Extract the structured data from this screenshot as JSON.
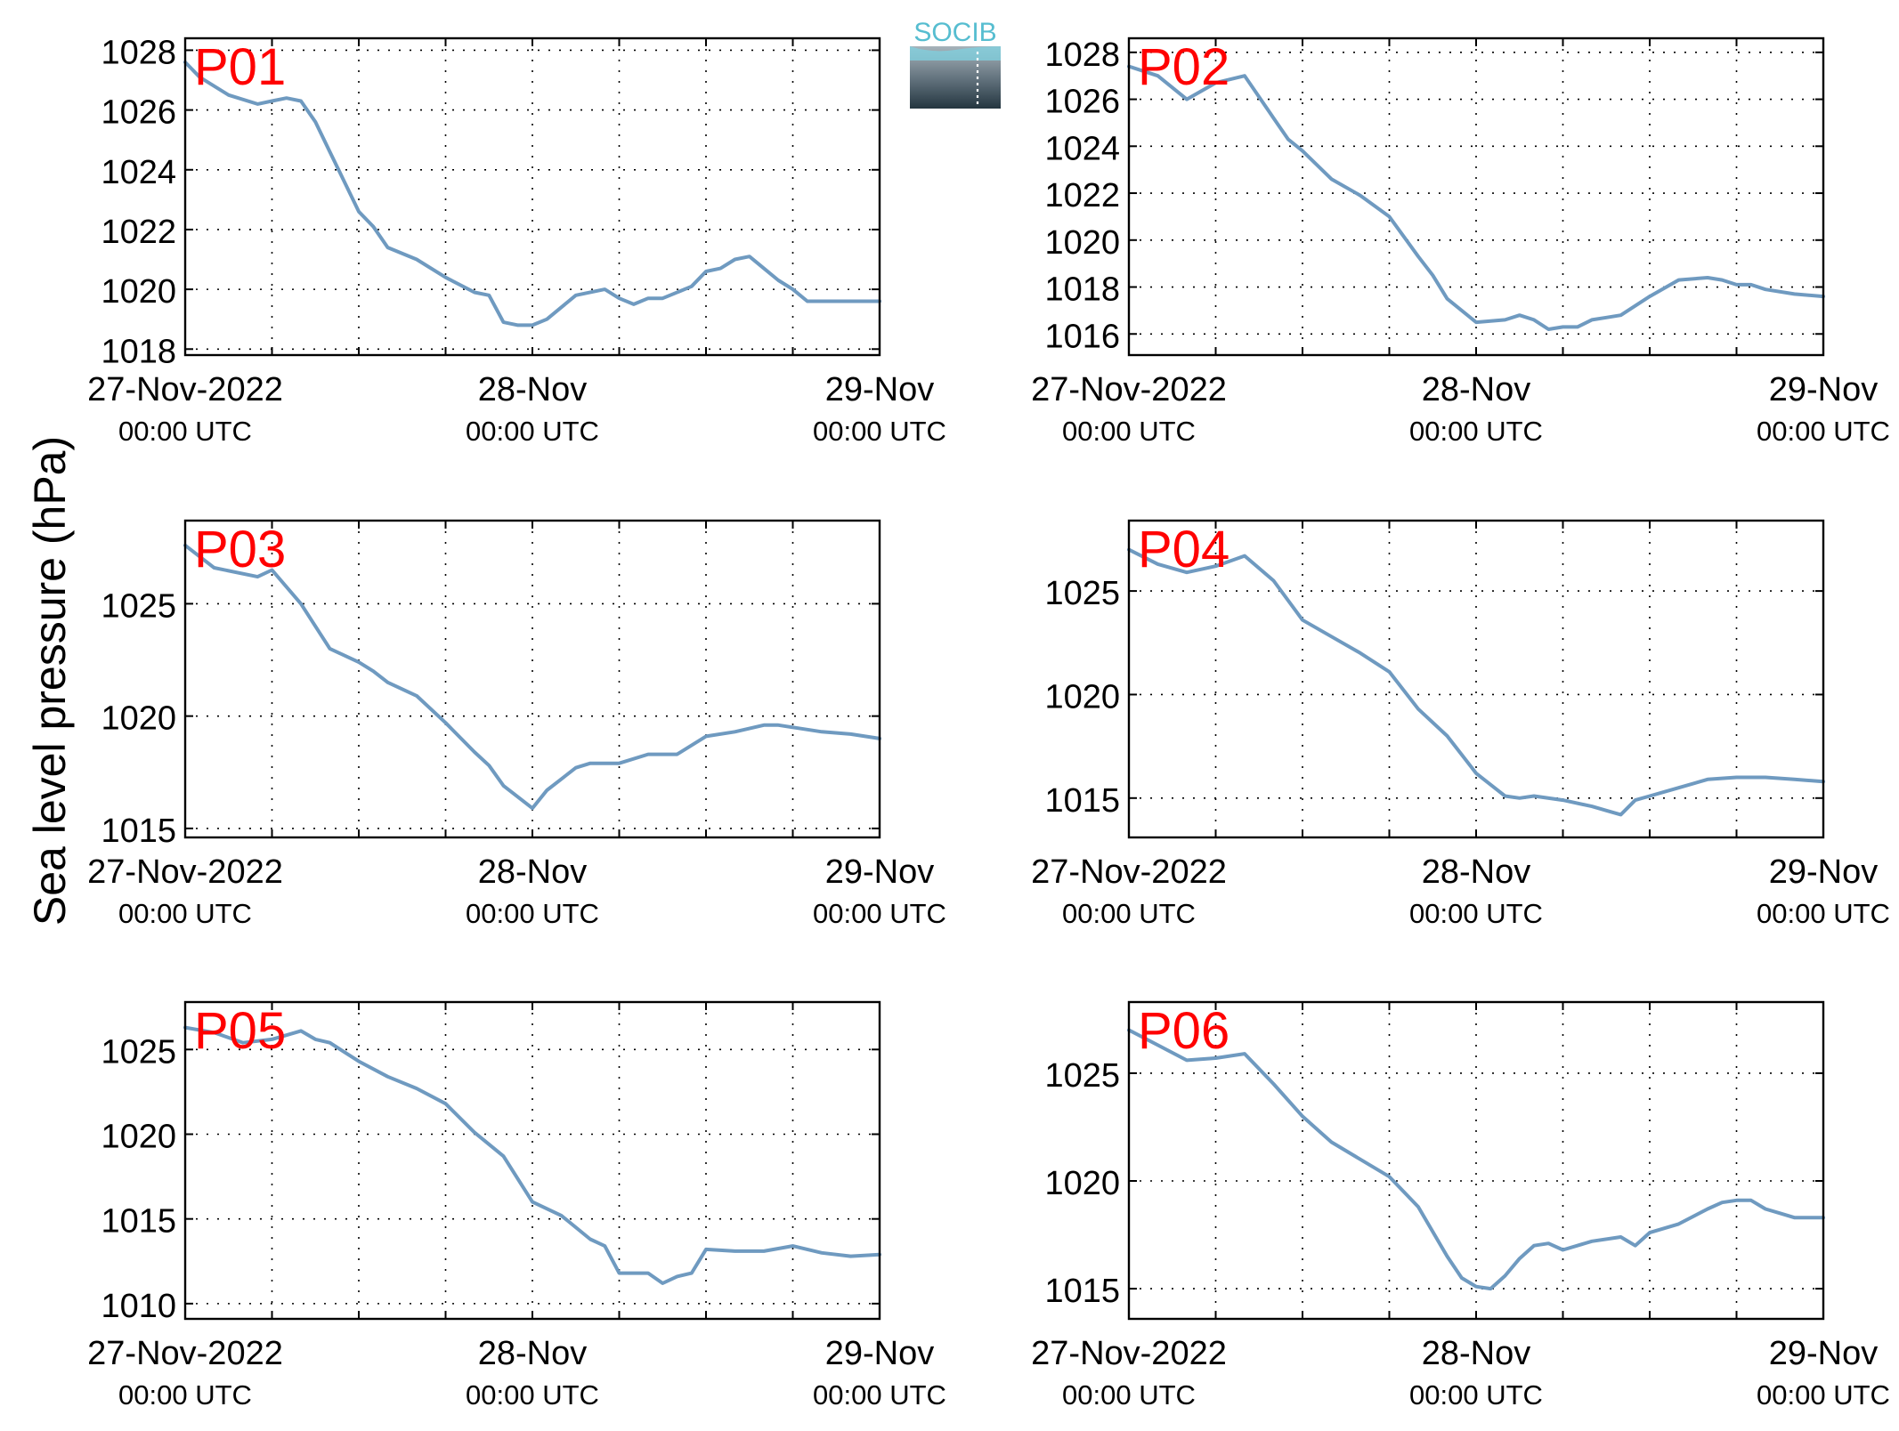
{
  "figure": {
    "ylabel": "Sea level pressure (hPa)",
    "logo_text": "SOCIB",
    "line_color": "#6f9ac0",
    "label_color": "#ff0000"
  },
  "chart_data": [
    {
      "type": "line",
      "title": "P01",
      "xlim": [
        "2022-11-27 00:00",
        "2022-11-29 00:00"
      ],
      "xticks": [
        {
          "label": "27-Nov-2022",
          "sub": "00:00 UTC"
        },
        {
          "label": "28-Nov",
          "sub": "00:00 UTC"
        },
        {
          "label": "29-Nov",
          "sub": "00:00 UTC"
        }
      ],
      "ylim": [
        1017.8,
        1028.4
      ],
      "yticks": [
        1018,
        1020,
        1022,
        1024,
        1026,
        1028
      ],
      "grid": true,
      "series": [
        {
          "x_hours": [
            0,
            1,
            3,
            5,
            6,
            7,
            8,
            9,
            10,
            11,
            12,
            13,
            14,
            16,
            18,
            20,
            21,
            22,
            23,
            24,
            25,
            27,
            29,
            30,
            31,
            32,
            33,
            35,
            36,
            37,
            38,
            39,
            40,
            41,
            42,
            43,
            44,
            45,
            46,
            47,
            48
          ],
          "y": [
            1027.6,
            1027.1,
            1026.5,
            1026.2,
            1026.3,
            1026.4,
            1026.3,
            1025.6,
            1024.6,
            1023.6,
            1022.6,
            1022.1,
            1021.4,
            1021.0,
            1020.4,
            1019.9,
            1019.8,
            1018.9,
            1018.8,
            1018.8,
            1019.0,
            1019.8,
            1020.0,
            1019.7,
            1019.5,
            1019.7,
            1019.7,
            1020.1,
            1020.6,
            1020.7,
            1021.0,
            1021.1,
            1020.7,
            1020.3,
            1020.0,
            1019.6,
            1019.6,
            1019.6,
            1019.6,
            1019.6,
            1019.6
          ]
        }
      ]
    },
    {
      "type": "line",
      "title": "P02",
      "xlim": [
        "2022-11-27 00:00",
        "2022-11-29 00:00"
      ],
      "xticks": [
        {
          "label": "27-Nov-2022",
          "sub": "00:00 UTC"
        },
        {
          "label": "28-Nov",
          "sub": "00:00 UTC"
        },
        {
          "label": "29-Nov",
          "sub": "00:00 UTC"
        }
      ],
      "ylim": [
        1015.1,
        1028.6
      ],
      "yticks": [
        1016,
        1018,
        1020,
        1022,
        1024,
        1026,
        1028
      ],
      "grid": true,
      "series": [
        {
          "x_hours": [
            0,
            2,
            4,
            6,
            8,
            10,
            11,
            12,
            14,
            16,
            18,
            20,
            21,
            22,
            24,
            26,
            27,
            28,
            29,
            30,
            31,
            32,
            33,
            34,
            36,
            38,
            40,
            41,
            42,
            43,
            44,
            46,
            48
          ],
          "y": [
            1027.4,
            1027.0,
            1026.0,
            1026.7,
            1027.0,
            1025.2,
            1024.3,
            1023.8,
            1022.6,
            1021.9,
            1021.0,
            1019.3,
            1018.5,
            1017.5,
            1016.5,
            1016.6,
            1016.8,
            1016.6,
            1016.2,
            1016.3,
            1016.3,
            1016.6,
            1016.7,
            1016.8,
            1017.6,
            1018.3,
            1018.4,
            1018.3,
            1018.1,
            1018.1,
            1017.9,
            1017.7,
            1017.6
          ]
        }
      ]
    },
    {
      "type": "line",
      "title": "P03",
      "xlim": [
        "2022-11-27 00:00",
        "2022-11-29 00:00"
      ],
      "xticks": [
        {
          "label": "27-Nov-2022",
          "sub": "00:00 UTC"
        },
        {
          "label": "28-Nov",
          "sub": "00:00 UTC"
        },
        {
          "label": "29-Nov",
          "sub": "00:00 UTC"
        }
      ],
      "ylim": [
        1014.6,
        1028.7
      ],
      "yticks": [
        1015,
        1020,
        1025
      ],
      "grid": true,
      "series": [
        {
          "x_hours": [
            0,
            2,
            5,
            6,
            8,
            10,
            12,
            13,
            14,
            16,
            18,
            20,
            21,
            22,
            24,
            25,
            26,
            27,
            28,
            30,
            32,
            34,
            36,
            38,
            40,
            41,
            42,
            43,
            44,
            46,
            48
          ],
          "y": [
            1027.6,
            1026.6,
            1026.2,
            1026.5,
            1025.0,
            1023.0,
            1022.4,
            1022.0,
            1021.5,
            1020.9,
            1019.7,
            1018.4,
            1017.8,
            1016.9,
            1015.9,
            1016.7,
            1017.2,
            1017.7,
            1017.9,
            1017.9,
            1018.3,
            1018.3,
            1019.1,
            1019.3,
            1019.6,
            1019.6,
            1019.5,
            1019.4,
            1019.3,
            1019.2,
            1019.0
          ]
        }
      ]
    },
    {
      "type": "line",
      "title": "P04",
      "xlim": [
        "2022-11-27 00:00",
        "2022-11-29 00:00"
      ],
      "xticks": [
        {
          "label": "27-Nov-2022",
          "sub": "00:00 UTC"
        },
        {
          "label": "28-Nov",
          "sub": "00:00 UTC"
        },
        {
          "label": "29-Nov",
          "sub": "00:00 UTC"
        }
      ],
      "ylim": [
        1013.1,
        1028.4
      ],
      "yticks": [
        1015,
        1020,
        1025
      ],
      "grid": true,
      "series": [
        {
          "x_hours": [
            0,
            2,
            4,
            6,
            8,
            10,
            12,
            14,
            16,
            18,
            20,
            22,
            24,
            26,
            27,
            28,
            30,
            32,
            33,
            34,
            35,
            36,
            38,
            40,
            42,
            44,
            46,
            48
          ],
          "y": [
            1027.0,
            1026.3,
            1025.9,
            1026.2,
            1026.7,
            1025.5,
            1023.6,
            1022.8,
            1022.0,
            1021.1,
            1019.3,
            1018.0,
            1016.2,
            1015.1,
            1015.0,
            1015.1,
            1014.9,
            1014.6,
            1014.4,
            1014.2,
            1014.9,
            1015.1,
            1015.5,
            1015.9,
            1016.0,
            1016.0,
            1015.9,
            1015.8
          ]
        }
      ]
    },
    {
      "type": "line",
      "title": "P05",
      "xlim": [
        "2022-11-27 00:00",
        "2022-11-29 00:00"
      ],
      "xticks": [
        {
          "label": "27-Nov-2022",
          "sub": "00:00 UTC"
        },
        {
          "label": "28-Nov",
          "sub": "00:00 UTC"
        },
        {
          "label": "29-Nov",
          "sub": "00:00 UTC"
        }
      ],
      "ylim": [
        1009.1,
        1027.8
      ],
      "yticks": [
        1010,
        1015,
        1020,
        1025
      ],
      "grid": true,
      "series": [
        {
          "x_hours": [
            0,
            2,
            4,
            6,
            8,
            9,
            10,
            12,
            14,
            16,
            18,
            20,
            22,
            24,
            26,
            28,
            29,
            30,
            32,
            33,
            34,
            35,
            36,
            38,
            40,
            42,
            44,
            46,
            48
          ],
          "y": [
            1026.3,
            1026.0,
            1025.4,
            1025.6,
            1026.1,
            1025.6,
            1025.4,
            1024.3,
            1023.4,
            1022.7,
            1021.8,
            1020.1,
            1018.7,
            1016.0,
            1015.2,
            1013.8,
            1013.4,
            1011.8,
            1011.8,
            1011.2,
            1011.6,
            1011.8,
            1013.2,
            1013.1,
            1013.1,
            1013.4,
            1013.0,
            1012.8,
            1012.9
          ]
        }
      ]
    },
    {
      "type": "line",
      "title": "P06",
      "xlim": [
        "2022-11-27 00:00",
        "2022-11-29 00:00"
      ],
      "xticks": [
        {
          "label": "27-Nov-2022",
          "sub": "00:00 UTC"
        },
        {
          "label": "28-Nov",
          "sub": "00:00 UTC"
        },
        {
          "label": "29-Nov",
          "sub": "00:00 UTC"
        }
      ],
      "ylim": [
        1013.6,
        1028.3
      ],
      "yticks": [
        1015,
        1020,
        1025
      ],
      "grid": true,
      "series": [
        {
          "x_hours": [
            0,
            2,
            4,
            6,
            8,
            10,
            12,
            14,
            16,
            18,
            20,
            22,
            23,
            24,
            25,
            26,
            27,
            28,
            29,
            30,
            32,
            34,
            35,
            36,
            38,
            40,
            41,
            42,
            43,
            44,
            45,
            46,
            48
          ],
          "y": [
            1027.0,
            1026.3,
            1025.6,
            1025.7,
            1025.9,
            1024.5,
            1023.0,
            1021.8,
            1021.0,
            1020.2,
            1018.8,
            1016.5,
            1015.5,
            1015.1,
            1015.0,
            1015.6,
            1016.4,
            1017.0,
            1017.1,
            1016.8,
            1017.2,
            1017.4,
            1017.0,
            1017.6,
            1018.0,
            1018.7,
            1019.0,
            1019.1,
            1019.1,
            1018.7,
            1018.5,
            1018.3,
            1018.3
          ]
        }
      ]
    }
  ]
}
